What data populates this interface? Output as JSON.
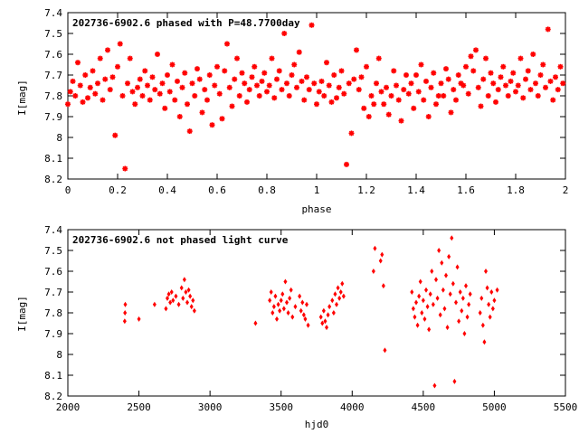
{
  "chart_data": [
    {
      "type": "scatter",
      "title": "202736-6902.6 phased with P=48.7700day",
      "xlabel": "phase",
      "ylabel": "I[mag]",
      "xlim": [
        0,
        2
      ],
      "ylim": [
        7.4,
        8.2
      ],
      "y_inverted": true,
      "x_ticks": [
        "0",
        "0.2",
        "0.4",
        "0.6",
        "0.8",
        "1",
        "1.2",
        "1.4",
        "1.6",
        "1.8",
        "2"
      ],
      "y_ticks": [
        "7.4",
        "7.5",
        "7.6",
        "7.7",
        "7.8",
        "7.9",
        "8",
        "8.1",
        "8.2"
      ],
      "marker": "star",
      "color": "#ff0000",
      "points": [
        [
          0.0,
          7.84
        ],
        [
          0.01,
          7.78
        ],
        [
          0.02,
          7.73
        ],
        [
          0.03,
          7.8
        ],
        [
          0.04,
          7.64
        ],
        [
          0.05,
          7.75
        ],
        [
          0.06,
          7.83
        ],
        [
          0.07,
          7.7
        ],
        [
          0.08,
          7.81
        ],
        [
          0.09,
          7.76
        ],
        [
          0.1,
          7.68
        ],
        [
          0.11,
          7.79
        ],
        [
          0.12,
          7.74
        ],
        [
          0.13,
          7.62
        ],
        [
          0.14,
          7.82
        ],
        [
          0.15,
          7.72
        ],
        [
          0.16,
          7.58
        ],
        [
          0.17,
          7.77
        ],
        [
          0.18,
          7.71
        ],
        [
          0.19,
          7.99
        ],
        [
          0.2,
          7.66
        ],
        [
          0.21,
          7.55
        ],
        [
          0.22,
          7.8
        ],
        [
          0.23,
          8.15
        ],
        [
          0.24,
          7.74
        ],
        [
          0.25,
          7.62
        ],
        [
          0.26,
          7.78
        ],
        [
          0.27,
          7.84
        ],
        [
          0.28,
          7.76
        ],
        [
          0.29,
          7.72
        ],
        [
          0.3,
          7.8
        ],
        [
          0.31,
          7.68
        ],
        [
          0.32,
          7.75
        ],
        [
          0.33,
          7.82
        ],
        [
          0.34,
          7.71
        ],
        [
          0.35,
          7.77
        ],
        [
          0.36,
          7.6
        ],
        [
          0.37,
          7.79
        ],
        [
          0.38,
          7.74
        ],
        [
          0.39,
          7.86
        ],
        [
          0.4,
          7.7
        ],
        [
          0.41,
          7.78
        ],
        [
          0.42,
          7.65
        ],
        [
          0.43,
          7.82
        ],
        [
          0.44,
          7.73
        ],
        [
          0.45,
          7.9
        ],
        [
          0.46,
          7.76
        ],
        [
          0.47,
          7.69
        ],
        [
          0.48,
          7.84
        ],
        [
          0.49,
          7.97
        ],
        [
          0.5,
          7.74
        ],
        [
          0.51,
          7.8
        ],
        [
          0.52,
          7.67
        ],
        [
          0.53,
          7.72
        ],
        [
          0.54,
          7.88
        ],
        [
          0.55,
          7.77
        ],
        [
          0.56,
          7.82
        ],
        [
          0.57,
          7.7
        ],
        [
          0.58,
          7.94
        ],
        [
          0.59,
          7.75
        ],
        [
          0.6,
          7.66
        ],
        [
          0.61,
          7.79
        ],
        [
          0.62,
          7.91
        ],
        [
          0.63,
          7.68
        ],
        [
          0.64,
          7.55
        ],
        [
          0.65,
          7.76
        ],
        [
          0.66,
          7.85
        ],
        [
          0.67,
          7.72
        ],
        [
          0.68,
          7.62
        ],
        [
          0.69,
          7.8
        ],
        [
          0.7,
          7.69
        ],
        [
          0.71,
          7.74
        ],
        [
          0.72,
          7.83
        ],
        [
          0.73,
          7.77
        ],
        [
          0.74,
          7.71
        ],
        [
          0.75,
          7.66
        ],
        [
          0.76,
          7.75
        ],
        [
          0.77,
          7.8
        ],
        [
          0.78,
          7.73
        ],
        [
          0.79,
          7.69
        ],
        [
          0.8,
          7.78
        ],
        [
          0.81,
          7.75
        ],
        [
          0.82,
          7.62
        ],
        [
          0.83,
          7.81
        ],
        [
          0.84,
          7.72
        ],
        [
          0.85,
          7.68
        ],
        [
          0.86,
          7.77
        ],
        [
          0.87,
          7.5
        ],
        [
          0.88,
          7.74
        ],
        [
          0.89,
          7.8
        ],
        [
          0.9,
          7.7
        ],
        [
          0.91,
          7.65
        ],
        [
          0.92,
          7.76
        ],
        [
          0.93,
          7.59
        ],
        [
          0.94,
          7.73
        ],
        [
          0.95,
          7.82
        ],
        [
          0.96,
          7.71
        ],
        [
          0.97,
          7.77
        ],
        [
          0.98,
          7.46
        ],
        [
          0.99,
          7.74
        ],
        [
          1.0,
          7.84
        ],
        [
          1.01,
          7.78
        ],
        [
          1.02,
          7.73
        ],
        [
          1.03,
          7.8
        ],
        [
          1.04,
          7.64
        ],
        [
          1.05,
          7.75
        ],
        [
          1.06,
          7.83
        ],
        [
          1.07,
          7.7
        ],
        [
          1.08,
          7.81
        ],
        [
          1.09,
          7.76
        ],
        [
          1.1,
          7.68
        ],
        [
          1.11,
          7.79
        ],
        [
          1.12,
          8.13
        ],
        [
          1.13,
          7.74
        ],
        [
          1.14,
          7.98
        ],
        [
          1.15,
          7.72
        ],
        [
          1.16,
          7.58
        ],
        [
          1.17,
          7.77
        ],
        [
          1.18,
          7.71
        ],
        [
          1.19,
          7.86
        ],
        [
          1.2,
          7.66
        ],
        [
          1.21,
          7.9
        ],
        [
          1.22,
          7.8
        ],
        [
          1.23,
          7.84
        ],
        [
          1.24,
          7.74
        ],
        [
          1.25,
          7.62
        ],
        [
          1.26,
          7.78
        ],
        [
          1.27,
          7.84
        ],
        [
          1.28,
          7.76
        ],
        [
          1.29,
          7.89
        ],
        [
          1.3,
          7.8
        ],
        [
          1.31,
          7.68
        ],
        [
          1.32,
          7.75
        ],
        [
          1.33,
          7.82
        ],
        [
          1.34,
          7.92
        ],
        [
          1.35,
          7.77
        ],
        [
          1.36,
          7.7
        ],
        [
          1.37,
          7.79
        ],
        [
          1.38,
          7.74
        ],
        [
          1.39,
          7.86
        ],
        [
          1.4,
          7.7
        ],
        [
          1.41,
          7.78
        ],
        [
          1.42,
          7.65
        ],
        [
          1.43,
          7.82
        ],
        [
          1.44,
          7.73
        ],
        [
          1.45,
          7.9
        ],
        [
          1.46,
          7.76
        ],
        [
          1.47,
          7.69
        ],
        [
          1.48,
          7.84
        ],
        [
          1.49,
          7.8
        ],
        [
          1.5,
          7.74
        ],
        [
          1.51,
          7.8
        ],
        [
          1.52,
          7.67
        ],
        [
          1.53,
          7.72
        ],
        [
          1.54,
          7.88
        ],
        [
          1.55,
          7.77
        ],
        [
          1.56,
          7.82
        ],
        [
          1.57,
          7.7
        ],
        [
          1.58,
          7.74
        ],
        [
          1.59,
          7.75
        ],
        [
          1.6,
          7.66
        ],
        [
          1.61,
          7.79
        ],
        [
          1.62,
          7.61
        ],
        [
          1.63,
          7.68
        ],
        [
          1.64,
          7.58
        ],
        [
          1.65,
          7.76
        ],
        [
          1.66,
          7.85
        ],
        [
          1.67,
          7.72
        ],
        [
          1.68,
          7.62
        ],
        [
          1.69,
          7.8
        ],
        [
          1.7,
          7.69
        ],
        [
          1.71,
          7.74
        ],
        [
          1.72,
          7.83
        ],
        [
          1.73,
          7.77
        ],
        [
          1.74,
          7.71
        ],
        [
          1.75,
          7.66
        ],
        [
          1.76,
          7.75
        ],
        [
          1.77,
          7.8
        ],
        [
          1.78,
          7.73
        ],
        [
          1.79,
          7.69
        ],
        [
          1.8,
          7.78
        ],
        [
          1.81,
          7.75
        ],
        [
          1.82,
          7.62
        ],
        [
          1.83,
          7.81
        ],
        [
          1.84,
          7.72
        ],
        [
          1.85,
          7.68
        ],
        [
          1.86,
          7.77
        ],
        [
          1.87,
          7.6
        ],
        [
          1.88,
          7.74
        ],
        [
          1.89,
          7.8
        ],
        [
          1.9,
          7.7
        ],
        [
          1.91,
          7.65
        ],
        [
          1.92,
          7.76
        ],
        [
          1.93,
          7.48
        ],
        [
          1.94,
          7.73
        ],
        [
          1.95,
          7.82
        ],
        [
          1.96,
          7.71
        ],
        [
          1.97,
          7.77
        ],
        [
          1.98,
          7.66
        ],
        [
          1.99,
          7.74
        ]
      ]
    },
    {
      "type": "scatter",
      "title": "202736-6902.6 not phased light curve",
      "xlabel": "hjd0",
      "ylabel": "I[mag]",
      "xlim": [
        2000,
        5500
      ],
      "ylim": [
        7.4,
        8.2
      ],
      "y_inverted": true,
      "x_ticks": [
        "2000",
        "2500",
        "3000",
        "3500",
        "4000",
        "4500",
        "5000",
        "5500"
      ],
      "y_ticks": [
        "7.4",
        "7.5",
        "7.6",
        "7.7",
        "7.8",
        "7.9",
        "8",
        "8.1",
        "8.2"
      ],
      "marker": "diamond",
      "color": "#ff0000",
      "points": [
        [
          2400,
          7.84
        ],
        [
          2402,
          7.8
        ],
        [
          2404,
          7.76
        ],
        [
          2500,
          7.83
        ],
        [
          2610,
          7.76
        ],
        [
          2690,
          7.78
        ],
        [
          2700,
          7.73
        ],
        [
          2710,
          7.71
        ],
        [
          2720,
          7.75
        ],
        [
          2730,
          7.7
        ],
        [
          2740,
          7.74
        ],
        [
          2760,
          7.72
        ],
        [
          2780,
          7.76
        ],
        [
          2800,
          7.68
        ],
        [
          2810,
          7.73
        ],
        [
          2820,
          7.64
        ],
        [
          2830,
          7.7
        ],
        [
          2840,
          7.75
        ],
        [
          2850,
          7.69
        ],
        [
          2860,
          7.72
        ],
        [
          2870,
          7.77
        ],
        [
          2880,
          7.74
        ],
        [
          2890,
          7.79
        ],
        [
          3320,
          7.85
        ],
        [
          3420,
          7.74
        ],
        [
          3430,
          7.7
        ],
        [
          3440,
          7.8
        ],
        [
          3450,
          7.77
        ],
        [
          3460,
          7.72
        ],
        [
          3470,
          7.83
        ],
        [
          3480,
          7.76
        ],
        [
          3490,
          7.79
        ],
        [
          3500,
          7.74
        ],
        [
          3510,
          7.71
        ],
        [
          3520,
          7.78
        ],
        [
          3530,
          7.65
        ],
        [
          3540,
          7.75
        ],
        [
          3550,
          7.8
        ],
        [
          3560,
          7.73
        ],
        [
          3570,
          7.69
        ],
        [
          3580,
          7.82
        ],
        [
          3600,
          7.77
        ],
        [
          3630,
          7.72
        ],
        [
          3640,
          7.79
        ],
        [
          3650,
          7.75
        ],
        [
          3660,
          7.81
        ],
        [
          3670,
          7.83
        ],
        [
          3680,
          7.76
        ],
        [
          3690,
          7.86
        ],
        [
          3780,
          7.82
        ],
        [
          3790,
          7.85
        ],
        [
          3800,
          7.79
        ],
        [
          3810,
          7.84
        ],
        [
          3820,
          7.87
        ],
        [
          3830,
          7.81
        ],
        [
          3840,
          7.77
        ],
        [
          3860,
          7.74
        ],
        [
          3870,
          7.8
        ],
        [
          3880,
          7.71
        ],
        [
          3890,
          7.76
        ],
        [
          3900,
          7.68
        ],
        [
          3910,
          7.73
        ],
        [
          3920,
          7.7
        ],
        [
          3930,
          7.66
        ],
        [
          3940,
          7.72
        ],
        [
          4150,
          7.6
        ],
        [
          4160,
          7.49
        ],
        [
          4200,
          7.55
        ],
        [
          4210,
          7.52
        ],
        [
          4220,
          7.67
        ],
        [
          4230,
          7.98
        ],
        [
          4420,
          7.7
        ],
        [
          4430,
          7.78
        ],
        [
          4440,
          7.82
        ],
        [
          4450,
          7.75
        ],
        [
          4460,
          7.86
        ],
        [
          4470,
          7.72
        ],
        [
          4480,
          7.65
        ],
        [
          4490,
          7.8
        ],
        [
          4500,
          7.74
        ],
        [
          4510,
          7.83
        ],
        [
          4520,
          7.69
        ],
        [
          4530,
          7.77
        ],
        [
          4540,
          7.88
        ],
        [
          4550,
          7.71
        ],
        [
          4560,
          7.6
        ],
        [
          4570,
          7.76
        ],
        [
          4580,
          8.15
        ],
        [
          4590,
          7.64
        ],
        [
          4600,
          7.73
        ],
        [
          4610,
          7.5
        ],
        [
          4620,
          7.81
        ],
        [
          4630,
          7.56
        ],
        [
          4640,
          7.69
        ],
        [
          4650,
          7.78
        ],
        [
          4660,
          7.62
        ],
        [
          4670,
          7.87
        ],
        [
          4680,
          7.53
        ],
        [
          4690,
          7.71
        ],
        [
          4700,
          7.44
        ],
        [
          4710,
          7.66
        ],
        [
          4720,
          8.13
        ],
        [
          4730,
          7.75
        ],
        [
          4740,
          7.58
        ],
        [
          4750,
          7.84
        ],
        [
          4760,
          7.7
        ],
        [
          4770,
          7.79
        ],
        [
          4780,
          7.73
        ],
        [
          4790,
          7.9
        ],
        [
          4800,
          7.67
        ],
        [
          4810,
          7.82
        ],
        [
          4820,
          7.76
        ],
        [
          4830,
          7.71
        ],
        [
          4900,
          7.8
        ],
        [
          4910,
          7.73
        ],
        [
          4920,
          7.86
        ],
        [
          4930,
          7.94
        ],
        [
          4940,
          7.6
        ],
        [
          4950,
          7.68
        ],
        [
          4960,
          7.76
        ],
        [
          4970,
          7.82
        ],
        [
          4980,
          7.7
        ],
        [
          4990,
          7.78
        ],
        [
          5000,
          7.74
        ],
        [
          5020,
          7.69
        ]
      ]
    }
  ]
}
